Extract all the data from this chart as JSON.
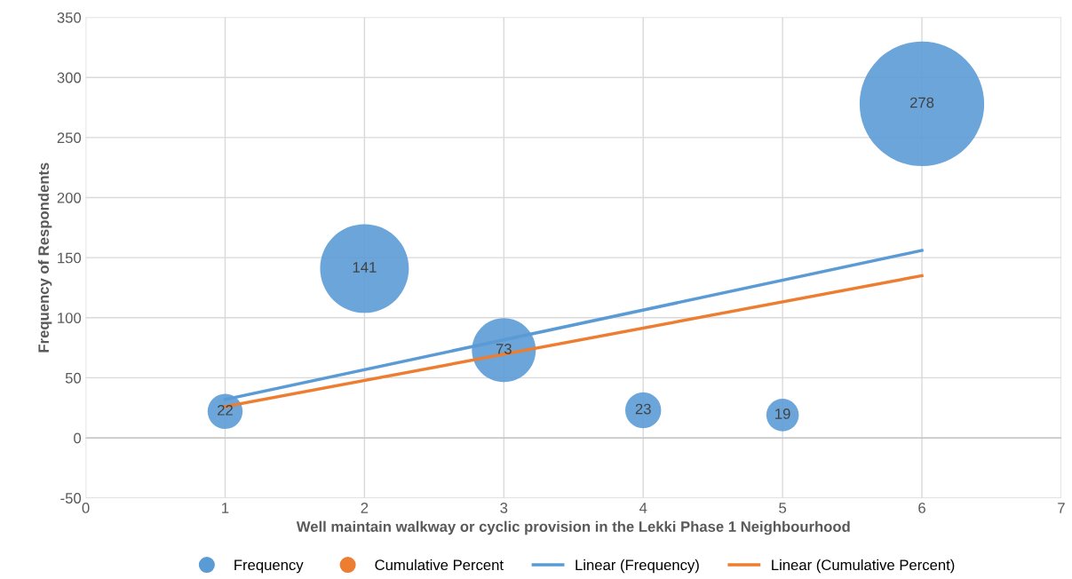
{
  "chart_data": {
    "type": "bubble",
    "xlabel": "Well maintain walkway or cyclic provision in the Lekki Phase 1 Neighbourhood",
    "ylabel": "Frequency of Respondents",
    "x": [
      1,
      2,
      3,
      4,
      5,
      6
    ],
    "series": [
      {
        "name": "Frequency",
        "color": "#5b9bd5",
        "values": [
          22,
          141,
          73,
          23,
          19,
          278
        ],
        "sizes": [
          0.079,
          0.507,
          0.263,
          0.083,
          0.068,
          1
        ],
        "data_labels": true
      },
      {
        "name": "Cumulative Percent",
        "color": "#ed7d31",
        "values": [
          null,
          null,
          null,
          null,
          null,
          null
        ]
      },
      {
        "name": "Linear (Frequency)",
        "type": "line",
        "color": "#5b9bd5",
        "values": [
          32,
          null,
          null,
          null,
          null,
          156
        ]
      },
      {
        "name": "Linear (Cumulative Percent)",
        "type": "line",
        "color": "#ed7d31",
        "values": [
          26,
          null,
          null,
          null,
          null,
          135
        ]
      }
    ],
    "xlim": [
      0,
      7
    ],
    "xticks": [
      0,
      1,
      2,
      3,
      4,
      5,
      6,
      7
    ],
    "ylim": [
      -50,
      350
    ],
    "yticks": [
      -50,
      0,
      50,
      100,
      150,
      200,
      250,
      300,
      350
    ],
    "grid": true,
    "legend": "bottom"
  }
}
